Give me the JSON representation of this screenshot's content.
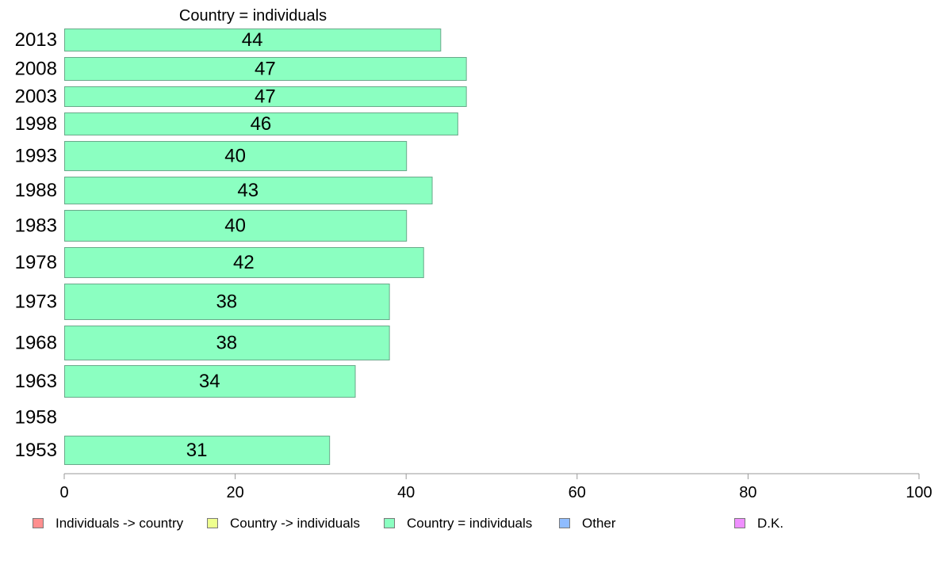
{
  "chart_data": {
    "type": "bar",
    "orientation": "horizontal",
    "title": "Country = individuals",
    "categories": [
      "2013",
      "2008",
      "2003",
      "1998",
      "1993",
      "1988",
      "1983",
      "1978",
      "1973",
      "1968",
      "1963",
      "1958",
      "1953"
    ],
    "series": [
      {
        "name": "Country = individuals",
        "color": "#8bffc1",
        "values": [
          44,
          47,
          47,
          46,
          40,
          43,
          40,
          42,
          38,
          38,
          34,
          null,
          31
        ],
        "labels": [
          "44",
          "47",
          "47",
          "46",
          "40",
          "43",
          "40",
          "42",
          "38",
          "38",
          "34",
          "",
          "31"
        ]
      }
    ],
    "xlim": [
      0,
      100
    ],
    "xticks": [
      "0",
      "20",
      "40",
      "60",
      "80",
      "100"
    ],
    "grid": false,
    "legend_position": "bottom",
    "legend": [
      {
        "label": "Individuals -> country",
        "color": "#ff8f8f"
      },
      {
        "label": "Country -> individuals",
        "color": "#eeff8f"
      },
      {
        "label": "Country = individuals",
        "color": "#8bffc1"
      },
      {
        "label": "Other",
        "color": "#8fbcff"
      },
      {
        "label": "D.K.",
        "color": "#ef8fff"
      }
    ]
  }
}
